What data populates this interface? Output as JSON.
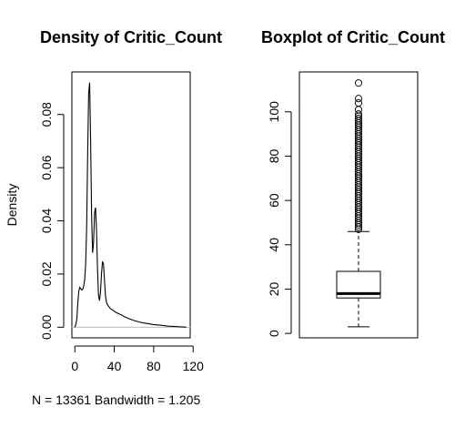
{
  "chart_data": [
    {
      "type": "line",
      "title": "Density of Critic_Count",
      "xlabel": "N = 13361   Bandwidth = 1.205",
      "ylabel": "Density",
      "xlim": [
        -3,
        117
      ],
      "ylim": [
        -0.004,
        0.096
      ],
      "x_ticks": [
        0,
        40,
        80,
        120
      ],
      "x_tick_labels": [
        "0",
        "40",
        "80",
        "120"
      ],
      "y_ticks": [
        0,
        0.02,
        0.04,
        0.06,
        0.08
      ],
      "y_tick_labels": [
        "0.00",
        "0.02",
        "0.04",
        "0.06",
        "0.08"
      ],
      "series": [
        {
          "x": [
            0,
            1,
            2,
            3,
            4,
            5,
            6,
            7,
            8,
            9,
            10,
            11,
            12,
            13,
            14,
            15,
            16,
            17,
            18,
            19,
            20,
            21,
            22,
            23,
            24,
            25,
            26,
            27,
            28,
            29,
            30,
            31,
            32,
            33,
            34,
            35,
            36,
            38,
            40,
            42,
            45,
            48,
            50,
            55,
            60,
            65,
            70,
            75,
            80,
            85,
            90,
            95,
            100,
            105,
            110,
            113
          ],
          "y": [
            0.0,
            0.001,
            0.003,
            0.009,
            0.0135,
            0.015,
            0.0145,
            0.014,
            0.0143,
            0.0155,
            0.018,
            0.024,
            0.038,
            0.065,
            0.088,
            0.092,
            0.07,
            0.042,
            0.028,
            0.032,
            0.043,
            0.045,
            0.036,
            0.022,
            0.012,
            0.01,
            0.013,
            0.02,
            0.0245,
            0.024,
            0.018,
            0.012,
            0.0095,
            0.0085,
            0.008,
            0.0075,
            0.007,
            0.0065,
            0.006,
            0.0055,
            0.005,
            0.0045,
            0.004,
            0.0032,
            0.0025,
            0.002,
            0.0016,
            0.0013,
            0.001,
            0.0008,
            0.0006,
            0.0004,
            0.0003,
            0.0002,
            0.0001,
            0.0
          ]
        }
      ],
      "zero_line": true
    },
    {
      "type": "box",
      "title": "Boxplot of Critic_Count",
      "ylim": [
        -2,
        118
      ],
      "y_ticks": [
        0,
        20,
        40,
        60,
        80,
        100
      ],
      "y_tick_labels": [
        "0",
        "20",
        "40",
        "60",
        "80",
        "100"
      ],
      "box": {
        "whisker_low": 3,
        "q1": 16,
        "median": 18,
        "q3": 28,
        "whisker_high": 46
      },
      "outliers": [
        113,
        106,
        104,
        101,
        99,
        98,
        97,
        96,
        95,
        94,
        93,
        92,
        91,
        90,
        89,
        88,
        87,
        86,
        85,
        84,
        83,
        82,
        81,
        80,
        79,
        78,
        77,
        76,
        75,
        74,
        73,
        72,
        71,
        70,
        69,
        68,
        67,
        66,
        65,
        64,
        63,
        62,
        61,
        60,
        59,
        58,
        57,
        56,
        55,
        54,
        53,
        52,
        51,
        50,
        49,
        48,
        47
      ]
    }
  ]
}
